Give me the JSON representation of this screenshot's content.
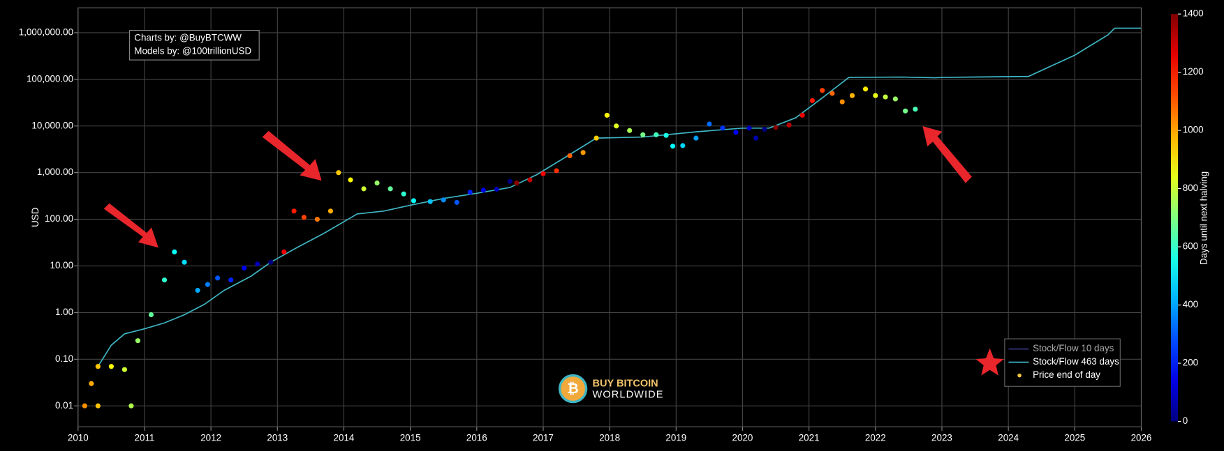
{
  "chart_data": {
    "type": "line",
    "ylabel": "USD",
    "log_y": true,
    "grid": true,
    "xlim": [
      2010,
      2026
    ],
    "xticks": [
      2010,
      2011,
      2012,
      2013,
      2014,
      2015,
      2016,
      2017,
      2018,
      2019,
      2020,
      2021,
      2022,
      2023,
      2024,
      2025,
      2026
    ],
    "ylim": [
      0.00355,
      3420000
    ],
    "yticks": [
      {
        "value": 0.01,
        "label": "0.01"
      },
      {
        "value": 0.1,
        "label": "0.10"
      },
      {
        "value": 1,
        "label": "1.00"
      },
      {
        "value": 10,
        "label": "10.00"
      },
      {
        "value": 100,
        "label": "100.00"
      },
      {
        "value": 1000,
        "label": "1,000.00"
      },
      {
        "value": 10000,
        "label": "10,000.00"
      },
      {
        "value": 100000,
        "label": "100,000.00"
      },
      {
        "value": 1000000,
        "label": "1,000,000.00"
      }
    ],
    "annotations": [
      "Charts by: @BuyBTCWW",
      "Models by: @100trillionUSD"
    ],
    "logo": [
      "BUY BITCOIN",
      "WORLDWIDE"
    ],
    "legend": "lower right",
    "colorbar": {
      "label": "Days until next halving",
      "lim": [
        0,
        1400
      ],
      "ticks": [
        0,
        200,
        400,
        600,
        800,
        1000,
        1200,
        1400
      ]
    },
    "series": [
      {
        "name": "Stock/Flow 10 days",
        "type": "line",
        "color": "#33337a"
      },
      {
        "name": "Stock/Flow 463 days",
        "type": "line",
        "color": "#3fb6c4",
        "x": [
          2010.3,
          2010.5,
          2010.7,
          2011.0,
          2011.3,
          2011.6,
          2011.9,
          2012.2,
          2012.6,
          2012.9,
          2013.3,
          2013.7,
          2014.2,
          2014.6,
          2015.0,
          2015.5,
          2016.0,
          2016.5,
          2016.9,
          2017.3,
          2017.8,
          2018.5,
          2019.3,
          2020.0,
          2020.4,
          2020.8,
          2021.2,
          2021.6,
          2022.4,
          2022.9,
          2023.0,
          2024.2,
          2024.3,
          2025.0,
          2025.5,
          2025.6,
          2026.0
        ],
        "values": [
          0.07,
          0.2,
          0.35,
          0.45,
          0.6,
          0.9,
          1.5,
          3,
          6,
          12,
          25,
          50,
          130,
          150,
          200,
          280,
          360,
          480,
          900,
          2000,
          5500,
          5800,
          7500,
          9000,
          9000,
          15000,
          40000,
          110000,
          112000,
          108000,
          110000,
          115000,
          115000,
          330000,
          900000,
          1250000,
          1250000
        ]
      },
      {
        "name": "Price end of day",
        "type": "scatter",
        "color": "#f0c63c",
        "x": [
          2010.1,
          2010.2,
          2010.3,
          2010.3,
          2010.5,
          2010.7,
          2010.8,
          2010.9,
          2011.1,
          2011.3,
          2011.45,
          2011.6,
          2011.8,
          2011.95,
          2012.1,
          2012.3,
          2012.5,
          2012.7,
          2012.9,
          2013.1,
          2013.25,
          2013.4,
          2013.6,
          2013.8,
          2013.92,
          2014.1,
          2014.3,
          2014.5,
          2014.7,
          2014.9,
          2015.05,
          2015.3,
          2015.5,
          2015.7,
          2015.9,
          2016.1,
          2016.3,
          2016.5,
          2016.6,
          2016.8,
          2017.0,
          2017.2,
          2017.4,
          2017.6,
          2017.8,
          2017.96,
          2018.1,
          2018.3,
          2018.5,
          2018.7,
          2018.85,
          2018.95,
          2019.1,
          2019.3,
          2019.5,
          2019.7,
          2019.9,
          2020.1,
          2020.2,
          2020.33,
          2020.5,
          2020.7,
          2020.9,
          2021.05,
          2021.2,
          2021.35,
          2021.5,
          2021.65,
          2021.85,
          2022.0,
          2022.15,
          2022.3,
          2022.45,
          2022.6
        ],
        "values": [
          0.01,
          0.03,
          0.01,
          0.07,
          0.07,
          0.06,
          0.01,
          0.25,
          0.9,
          5,
          20,
          12,
          3,
          4,
          5.5,
          5,
          9,
          11,
          12,
          20,
          150,
          110,
          100,
          150,
          1000,
          700,
          450,
          600,
          450,
          350,
          250,
          240,
          260,
          230,
          380,
          420,
          440,
          650,
          600,
          700,
          950,
          1100,
          2300,
          2700,
          5500,
          17000,
          10000,
          8000,
          6500,
          6500,
          6300,
          3700,
          3800,
          5500,
          11000,
          9000,
          7300,
          9000,
          5500,
          8500,
          9300,
          10500,
          17000,
          35000,
          58000,
          50000,
          33000,
          45000,
          62000,
          45000,
          42000,
          38000,
          21000,
          23000
        ],
        "days": [
          1026,
          990,
          953,
          953,
          880,
          807,
          770,
          734,
          661,
          588,
          533,
          478,
          405,
          351,
          296,
          223,
          150,
          77,
          4,
          1245,
          1191,
          1136,
          1063,
          990,
          946,
          881,
          808,
          734,
          661,
          588,
          533,
          442,
          369,
          296,
          223,
          153,
          80,
          7,
          1380,
          1307,
          1234,
          1161,
          1088,
          1015,
          942,
          884,
          833,
          760,
          687,
          614,
          559,
          523,
          468,
          395,
          321,
          248,
          168,
          95,
          58,
          11,
          1394,
          1321,
          1249,
          1194,
          1139,
          1084,
          1029,
          975,
          902,
          847,
          792,
          737,
          683,
          628
        ]
      }
    ]
  }
}
